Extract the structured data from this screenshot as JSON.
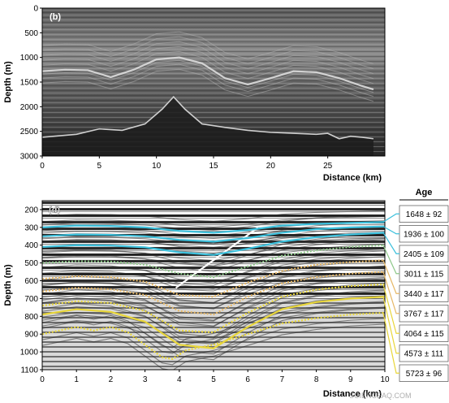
{
  "figure": {
    "watermark": "SCIENCEAQ.COM",
    "colors": {
      "blue": "#3cc0dc",
      "green": "#8fc88a",
      "tan": "#e6b867",
      "yellow": "#e8d63a",
      "seismic_dark": "#1a1a1a",
      "radar_bg": "#2f2f2f"
    }
  },
  "chart_data": [
    {
      "type": "heatmap",
      "panel_label": "(b)",
      "xlabel": "Distance (km)",
      "ylabel": "Depth (m)",
      "xlim": [
        0,
        30
      ],
      "ylim": [
        3000,
        0
      ],
      "xticks": [
        0,
        5,
        10,
        15,
        20,
        25
      ],
      "yticks": [
        0,
        500,
        1000,
        1500,
        2000,
        2500,
        3000
      ],
      "features": {
        "bedrock_horizon": {
          "x": [
            0,
            3,
            5,
            7,
            9,
            10.5,
            11.5,
            12.5,
            14,
            16,
            18,
            20,
            22,
            24,
            25,
            26,
            27,
            28,
            29
          ],
          "y": [
            2620,
            2560,
            2450,
            2480,
            2350,
            2050,
            1800,
            2050,
            2350,
            2420,
            2480,
            2520,
            2540,
            2560,
            2540,
            2650,
            2600,
            2620,
            2650
          ]
        },
        "bright_layer": {
          "x": [
            0,
            2,
            4,
            6,
            8,
            10,
            12,
            14,
            16,
            18,
            20,
            22,
            24,
            26,
            28,
            29
          ],
          "y": [
            1280,
            1250,
            1260,
            1400,
            1250,
            1040,
            1000,
            1120,
            1420,
            1550,
            1420,
            1280,
            1300,
            1420,
            1580,
            1650
          ]
        }
      }
    },
    {
      "type": "line",
      "panel_label": "(d)",
      "xlabel": "Distance (km)",
      "ylabel": "Depth (m)",
      "xlim": [
        0,
        10
      ],
      "ylim": [
        1100,
        150
      ],
      "xticks": [
        0,
        1,
        2,
        3,
        4,
        5,
        6,
        7,
        8,
        9,
        10
      ],
      "yticks": [
        200,
        300,
        400,
        500,
        600,
        700,
        800,
        900,
        1000,
        1100
      ],
      "legend_title": "Age",
      "series": [
        {
          "name": "1648 ± 92",
          "color": "#3cc0dc",
          "style": "solid",
          "x": [
            0,
            1,
            2,
            3,
            4,
            5,
            6,
            7,
            8,
            9,
            10
          ],
          "y": [
            300,
            290,
            292,
            300,
            320,
            330,
            315,
            290,
            280,
            275,
            270
          ]
        },
        {
          "name": "1936 ± 100",
          "color": "#3cc0dc",
          "style": "solid",
          "x": [
            0,
            1,
            2,
            3,
            4,
            5,
            6,
            7,
            8,
            9,
            10
          ],
          "y": [
            350,
            340,
            342,
            350,
            370,
            380,
            360,
            330,
            310,
            300,
            295
          ]
        },
        {
          "name": "2405 ± 109",
          "color": "#3cc0dc",
          "style": "solid",
          "x": [
            0,
            1,
            2,
            3,
            4,
            5,
            6,
            7,
            8,
            9,
            10
          ],
          "y": [
            410,
            400,
            402,
            412,
            440,
            455,
            420,
            380,
            355,
            340,
            330
          ]
        },
        {
          "name": "3011 ± 115",
          "color": "#8fc88a",
          "style": "dotted",
          "x": [
            0,
            1,
            2,
            3,
            4,
            5,
            6,
            7,
            8,
            9,
            10
          ],
          "y": [
            500,
            490,
            492,
            510,
            560,
            580,
            520,
            460,
            430,
            410,
            400
          ]
        },
        {
          "name": "3440 ± 117",
          "color": "#e6b867",
          "style": "dotted",
          "x": [
            0,
            1,
            2,
            3,
            4,
            5,
            6,
            7,
            8,
            9,
            10
          ],
          "y": [
            590,
            575,
            580,
            605,
            680,
            690,
            610,
            545,
            510,
            495,
            485
          ]
        },
        {
          "name": "3767 ± 117",
          "color": "#e6b867",
          "style": "dotted",
          "x": [
            0,
            1,
            2,
            3,
            4,
            5,
            6,
            7,
            8,
            9,
            10
          ],
          "y": [
            660,
            640,
            648,
            680,
            770,
            790,
            690,
            615,
            580,
            560,
            550
          ]
        },
        {
          "name": "4064 ± 115",
          "color": "#e8d63a",
          "style": "dotted",
          "x": [
            0,
            1,
            2,
            3,
            4,
            5,
            6,
            7,
            8,
            9,
            10
          ],
          "y": [
            740,
            715,
            725,
            770,
            880,
            890,
            780,
            690,
            650,
            630,
            620
          ]
        },
        {
          "name": "4573 ± 111",
          "color": "#e8d63a",
          "style": "solid",
          "x": [
            0,
            1,
            2,
            3,
            4,
            5,
            6,
            7,
            8,
            9,
            10
          ],
          "y": [
            790,
            760,
            775,
            830,
            960,
            980,
            860,
            760,
            720,
            700,
            690
          ]
        },
        {
          "name": "5723 ± 96",
          "color": "#e8d63a",
          "style": "dotted",
          "x": [
            0,
            0.5,
            1,
            1.5,
            2,
            2.5,
            3,
            3.5,
            3.8,
            4.2,
            5,
            6,
            7,
            8,
            9,
            10
          ],
          "y": [
            900,
            880,
            860,
            880,
            860,
            890,
            960,
            1030,
            1040,
            990,
            960,
            900,
            840,
            810,
            790,
            780
          ]
        }
      ]
    }
  ]
}
